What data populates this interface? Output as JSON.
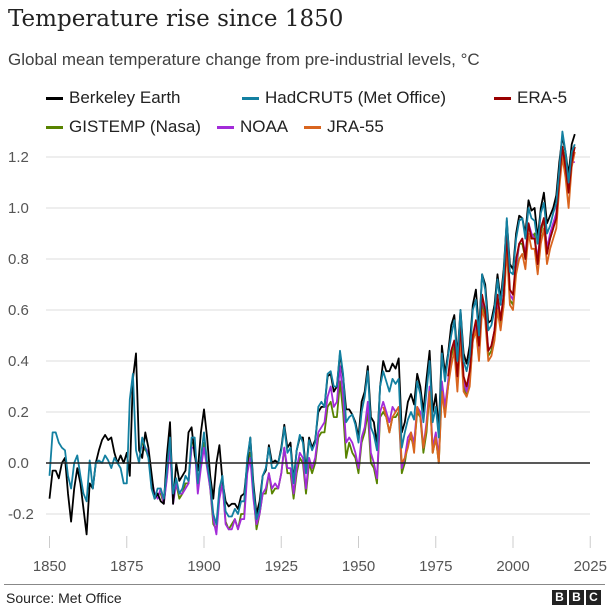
{
  "header": {
    "title": "Temperature rise since 1850",
    "subtitle": "Global mean temperature change from pre-industrial levels, °C"
  },
  "footer": {
    "source": "Source: Met Office",
    "logo": "BBC"
  },
  "chart_data": {
    "type": "line",
    "title": "Temperature rise since 1850",
    "subtitle": "Global mean temperature change from pre-industrial levels, °C",
    "xlabel": "",
    "ylabel": "",
    "xlim": [
      1850,
      2025
    ],
    "ylim": [
      -0.3,
      1.3
    ],
    "x_ticks": [
      1850,
      1875,
      1900,
      1925,
      1950,
      1975,
      2000,
      2025
    ],
    "x_tick_labels": [
      "1850",
      "1875",
      "1900",
      "1925",
      "1950",
      "1975",
      "2000",
      "2025"
    ],
    "y_ticks": [
      -0.2,
      0.0,
      0.2,
      0.4,
      0.6,
      0.8,
      1.0,
      1.2
    ],
    "y_tick_labels": [
      "-0.2",
      "0.0",
      "0.2",
      "0.4",
      "0.6",
      "0.8",
      "1.0",
      "1.2"
    ],
    "grid": "horizontal",
    "legend_position": "top",
    "series": [
      {
        "name": "Berkeley Earth",
        "color": "#000000",
        "start_year": 1850,
        "values": [
          -0.14,
          -0.03,
          -0.03,
          -0.06,
          0.0,
          0.02,
          -0.12,
          -0.23,
          -0.1,
          -0.02,
          -0.08,
          -0.18,
          -0.28,
          -0.08,
          -0.1,
          0.0,
          0.05,
          0.09,
          0.11,
          0.09,
          0.1,
          0.04,
          0.0,
          0.03,
          0.0,
          0.04,
          -0.05,
          0.33,
          0.43,
          0.05,
          0.02,
          0.12,
          0.06,
          -0.04,
          -0.14,
          -0.12,
          -0.15,
          -0.16,
          0.03,
          0.16,
          -0.16,
          0.0,
          -0.07,
          -0.05,
          -0.03,
          0.12,
          0.14,
          0.03,
          -0.03,
          0.12,
          0.21,
          0.1,
          -0.05,
          -0.14,
          0.0,
          0.07,
          -0.07,
          -0.15,
          -0.17,
          -0.16,
          -0.16,
          -0.18,
          -0.13,
          -0.12,
          0.0,
          0.1,
          -0.08,
          -0.2,
          -0.15,
          -0.05,
          -0.03,
          0.07,
          0.0,
          0.01,
          0.0,
          0.06,
          0.15,
          0.06,
          0.08,
          -0.07,
          0.05,
          0.1,
          0.1,
          -0.03,
          0.1,
          0.06,
          0.09,
          0.2,
          0.22,
          0.22,
          0.34,
          0.35,
          0.28,
          0.3,
          0.43,
          0.34,
          0.21,
          0.21,
          0.19,
          0.16,
          0.1,
          0.24,
          0.28,
          0.38,
          0.18,
          0.16,
          0.07,
          0.3,
          0.4,
          0.36,
          0.36,
          0.39,
          0.37,
          0.41,
          0.12,
          0.16,
          0.24,
          0.27,
          0.23,
          0.35,
          0.3,
          0.2,
          0.33,
          0.44,
          0.2,
          0.27,
          0.13,
          0.46,
          0.35,
          0.43,
          0.54,
          0.58,
          0.42,
          0.6,
          0.43,
          0.39,
          0.46,
          0.62,
          0.68,
          0.52,
          0.74,
          0.7,
          0.55,
          0.56,
          0.62,
          0.74,
          0.64,
          0.76,
          0.95,
          0.78,
          0.76,
          0.9,
          0.97,
          0.96,
          0.9,
          1.03,
          0.99,
          1.0,
          0.88,
          1.0,
          1.06,
          0.94,
          0.97,
          1.0,
          1.05,
          1.18,
          1.28,
          1.22,
          1.13,
          1.25,
          1.29
        ]
      },
      {
        "name": "HadCRUT5 (Met Office)",
        "color": "#1380a1",
        "start_year": 1850,
        "values": [
          -0.05,
          0.12,
          0.12,
          0.08,
          0.06,
          0.05,
          -0.05,
          -0.1,
          0.0,
          0.03,
          -0.05,
          -0.12,
          -0.15,
          0.01,
          -0.1,
          0.0,
          0.01,
          0.0,
          0.03,
          0.01,
          -0.02,
          0.02,
          0.0,
          -0.02,
          -0.08,
          -0.08,
          0.25,
          0.35,
          0.05,
          0.0,
          0.1,
          0.06,
          0.02,
          -0.1,
          -0.14,
          -0.1,
          -0.1,
          -0.14,
          -0.03,
          0.1,
          -0.12,
          -0.06,
          -0.12,
          -0.1,
          -0.05,
          -0.07,
          0.1,
          0.1,
          -0.08,
          0.02,
          0.12,
          0.0,
          -0.08,
          -0.2,
          -0.24,
          -0.1,
          -0.05,
          -0.19,
          -0.21,
          -0.21,
          -0.18,
          -0.2,
          -0.15,
          -0.15,
          0.02,
          0.1,
          -0.1,
          -0.22,
          -0.18,
          -0.05,
          -0.02,
          0.06,
          -0.02,
          -0.02,
          0.0,
          0.05,
          0.14,
          0.04,
          0.06,
          -0.08,
          0.05,
          0.11,
          0.08,
          -0.04,
          0.09,
          0.05,
          0.08,
          0.22,
          0.24,
          0.22,
          0.35,
          0.36,
          0.3,
          0.3,
          0.44,
          0.35,
          0.16,
          0.18,
          0.19,
          0.15,
          0.08,
          0.2,
          0.26,
          0.36,
          0.14,
          0.11,
          0.05,
          0.3,
          0.36,
          0.32,
          0.28,
          0.33,
          0.31,
          0.33,
          0.06,
          0.12,
          0.17,
          0.2,
          0.17,
          0.32,
          0.27,
          0.16,
          0.28,
          0.4,
          0.16,
          0.22,
          0.1,
          0.43,
          0.32,
          0.42,
          0.5,
          0.56,
          0.4,
          0.6,
          0.4,
          0.36,
          0.42,
          0.6,
          0.64,
          0.5,
          0.74,
          0.68,
          0.52,
          0.54,
          0.6,
          0.72,
          0.62,
          0.74,
          0.96,
          0.75,
          0.74,
          0.88,
          0.95,
          0.96,
          0.88,
          1.0,
          0.96,
          0.95,
          0.86,
          0.98,
          1.02,
          0.9,
          0.93,
          0.98,
          1.02,
          1.15,
          1.3,
          1.22,
          1.1,
          1.22,
          1.25
        ]
      },
      {
        "name": "ERA-5",
        "color": "#990000",
        "start_year": 1979,
        "values": [
          0.34,
          0.44,
          0.48,
          0.34,
          0.54,
          0.34,
          0.3,
          0.36,
          0.5,
          0.56,
          0.46,
          0.66,
          0.6,
          0.44,
          0.46,
          0.52,
          0.66,
          0.56,
          0.66,
          0.9,
          0.68,
          0.66,
          0.8,
          0.86,
          0.88,
          0.8,
          0.94,
          0.88,
          0.88,
          0.78,
          0.92,
          0.96,
          0.82,
          0.88,
          0.92,
          0.96,
          1.12,
          1.24,
          1.16,
          1.06,
          1.18,
          1.24
        ]
      },
      {
        "name": "GISTEMP (Nasa)",
        "color": "#588300",
        "start_year": 1880,
        "values": [
          0.08,
          0.05,
          0.04,
          -0.08,
          -0.14,
          -0.12,
          -0.12,
          -0.16,
          -0.05,
          0.08,
          -0.14,
          -0.08,
          -0.14,
          -0.12,
          -0.08,
          -0.08,
          0.08,
          0.08,
          -0.1,
          0.0,
          0.08,
          0.0,
          -0.1,
          -0.24,
          -0.26,
          -0.12,
          -0.08,
          -0.23,
          -0.26,
          -0.24,
          -0.22,
          -0.26,
          -0.2,
          -0.2,
          -0.02,
          0.04,
          -0.12,
          -0.26,
          -0.2,
          -0.12,
          -0.12,
          -0.04,
          -0.12,
          -0.1,
          -0.1,
          -0.04,
          0.06,
          -0.04,
          -0.04,
          -0.14,
          -0.04,
          0.02,
          0.0,
          -0.12,
          0.0,
          -0.04,
          0.0,
          0.1,
          0.12,
          0.12,
          0.22,
          0.24,
          0.18,
          0.18,
          0.32,
          0.2,
          0.02,
          0.08,
          0.04,
          0.02,
          -0.04,
          0.08,
          0.12,
          0.2,
          0.0,
          -0.02,
          -0.08,
          0.18,
          0.2,
          0.18,
          0.12,
          0.18,
          0.18,
          0.2,
          -0.04,
          0.0,
          0.08,
          0.1,
          0.06,
          0.2,
          0.18,
          0.04,
          0.12,
          0.28,
          0.04,
          0.1,
          0.0,
          0.3,
          0.2,
          0.3,
          0.42,
          0.46,
          0.3,
          0.5,
          0.3,
          0.26,
          0.32,
          0.48,
          0.52,
          0.42,
          0.62,
          0.58,
          0.42,
          0.44,
          0.5,
          0.62,
          0.54,
          0.62,
          0.86,
          0.64,
          0.62,
          0.76,
          0.86,
          0.86,
          0.8,
          0.94,
          0.88,
          0.9,
          0.78,
          0.9,
          0.96,
          0.84,
          0.88,
          0.92,
          0.98,
          1.12,
          1.24,
          1.18,
          1.06,
          1.2,
          1.24
        ]
      },
      {
        "name": "NOAA",
        "color": "#a32bd9",
        "start_year": 1880,
        "values": [
          0.06,
          0.06,
          0.04,
          -0.06,
          -0.12,
          -0.14,
          -0.1,
          -0.16,
          -0.06,
          0.06,
          -0.16,
          -0.08,
          -0.12,
          -0.12,
          -0.1,
          -0.08,
          0.06,
          0.06,
          -0.12,
          -0.02,
          0.06,
          -0.02,
          -0.1,
          -0.22,
          -0.28,
          -0.14,
          -0.08,
          -0.24,
          -0.26,
          -0.26,
          -0.22,
          -0.26,
          -0.22,
          -0.22,
          -0.04,
          0.02,
          -0.14,
          -0.24,
          -0.2,
          -0.12,
          -0.1,
          -0.04,
          -0.1,
          -0.08,
          -0.1,
          -0.04,
          0.06,
          -0.02,
          -0.02,
          -0.12,
          -0.02,
          0.04,
          0.02,
          -0.1,
          0.02,
          -0.02,
          0.02,
          0.12,
          0.14,
          0.16,
          0.26,
          0.3,
          0.22,
          0.24,
          0.38,
          0.26,
          0.08,
          0.1,
          0.08,
          0.04,
          -0.02,
          0.1,
          0.14,
          0.24,
          0.04,
          0.0,
          -0.06,
          0.2,
          0.24,
          0.2,
          0.16,
          0.22,
          0.2,
          0.22,
          -0.02,
          0.02,
          0.1,
          0.12,
          0.08,
          0.22,
          0.2,
          0.06,
          0.16,
          0.3,
          0.06,
          0.12,
          0.02,
          0.32,
          0.22,
          0.32,
          0.44,
          0.48,
          0.32,
          0.52,
          0.32,
          0.28,
          0.34,
          0.5,
          0.54,
          0.44,
          0.64,
          0.6,
          0.44,
          0.46,
          0.52,
          0.64,
          0.56,
          0.66,
          0.88,
          0.66,
          0.64,
          0.78,
          0.86,
          0.88,
          0.82,
          0.94,
          0.9,
          0.88,
          0.8,
          0.92,
          0.96,
          0.84,
          0.9,
          0.94,
          0.98,
          1.12,
          1.22,
          1.14,
          1.08,
          1.18,
          1.18
        ]
      },
      {
        "name": "JRA-55",
        "color": "#d9651f",
        "start_year": 1958,
        "values": [
          0.22,
          0.18,
          0.12,
          0.18,
          0.2,
          0.22,
          0.0,
          0.02,
          0.06,
          0.12,
          0.04,
          0.22,
          0.18,
          0.06,
          0.14,
          0.28,
          0.04,
          0.1,
          0.0,
          0.28,
          0.18,
          0.3,
          0.38,
          0.44,
          0.28,
          0.48,
          0.28,
          0.26,
          0.3,
          0.48,
          0.52,
          0.4,
          0.6,
          0.56,
          0.4,
          0.42,
          0.48,
          0.6,
          0.52,
          0.62,
          0.84,
          0.62,
          0.6,
          0.74,
          0.8,
          0.82,
          0.76,
          0.9,
          0.84,
          0.84,
          0.74,
          0.86,
          0.92,
          0.78,
          0.84,
          0.88,
          0.92,
          1.08,
          1.2,
          1.12,
          1.0,
          1.16,
          1.22
        ]
      }
    ]
  }
}
